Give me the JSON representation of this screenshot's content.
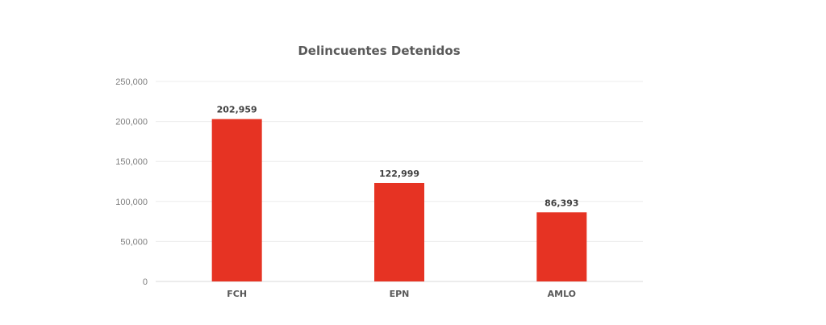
{
  "chart_data": {
    "type": "bar",
    "title": "Delincuentes Detenidos",
    "categories": [
      "FCH",
      "EPN",
      "AMLO"
    ],
    "values": [
      202959,
      122999,
      86393
    ],
    "data_labels": [
      "202,959",
      "122,999",
      "86,393"
    ],
    "yticks": [
      "0",
      "50,000",
      "100,000",
      "150,000",
      "200,000",
      "250,000"
    ],
    "ylim": [
      0,
      250000
    ],
    "xlabel": "",
    "ylabel": "",
    "grid": true,
    "bar_color": "#e63323",
    "legend": "none"
  }
}
